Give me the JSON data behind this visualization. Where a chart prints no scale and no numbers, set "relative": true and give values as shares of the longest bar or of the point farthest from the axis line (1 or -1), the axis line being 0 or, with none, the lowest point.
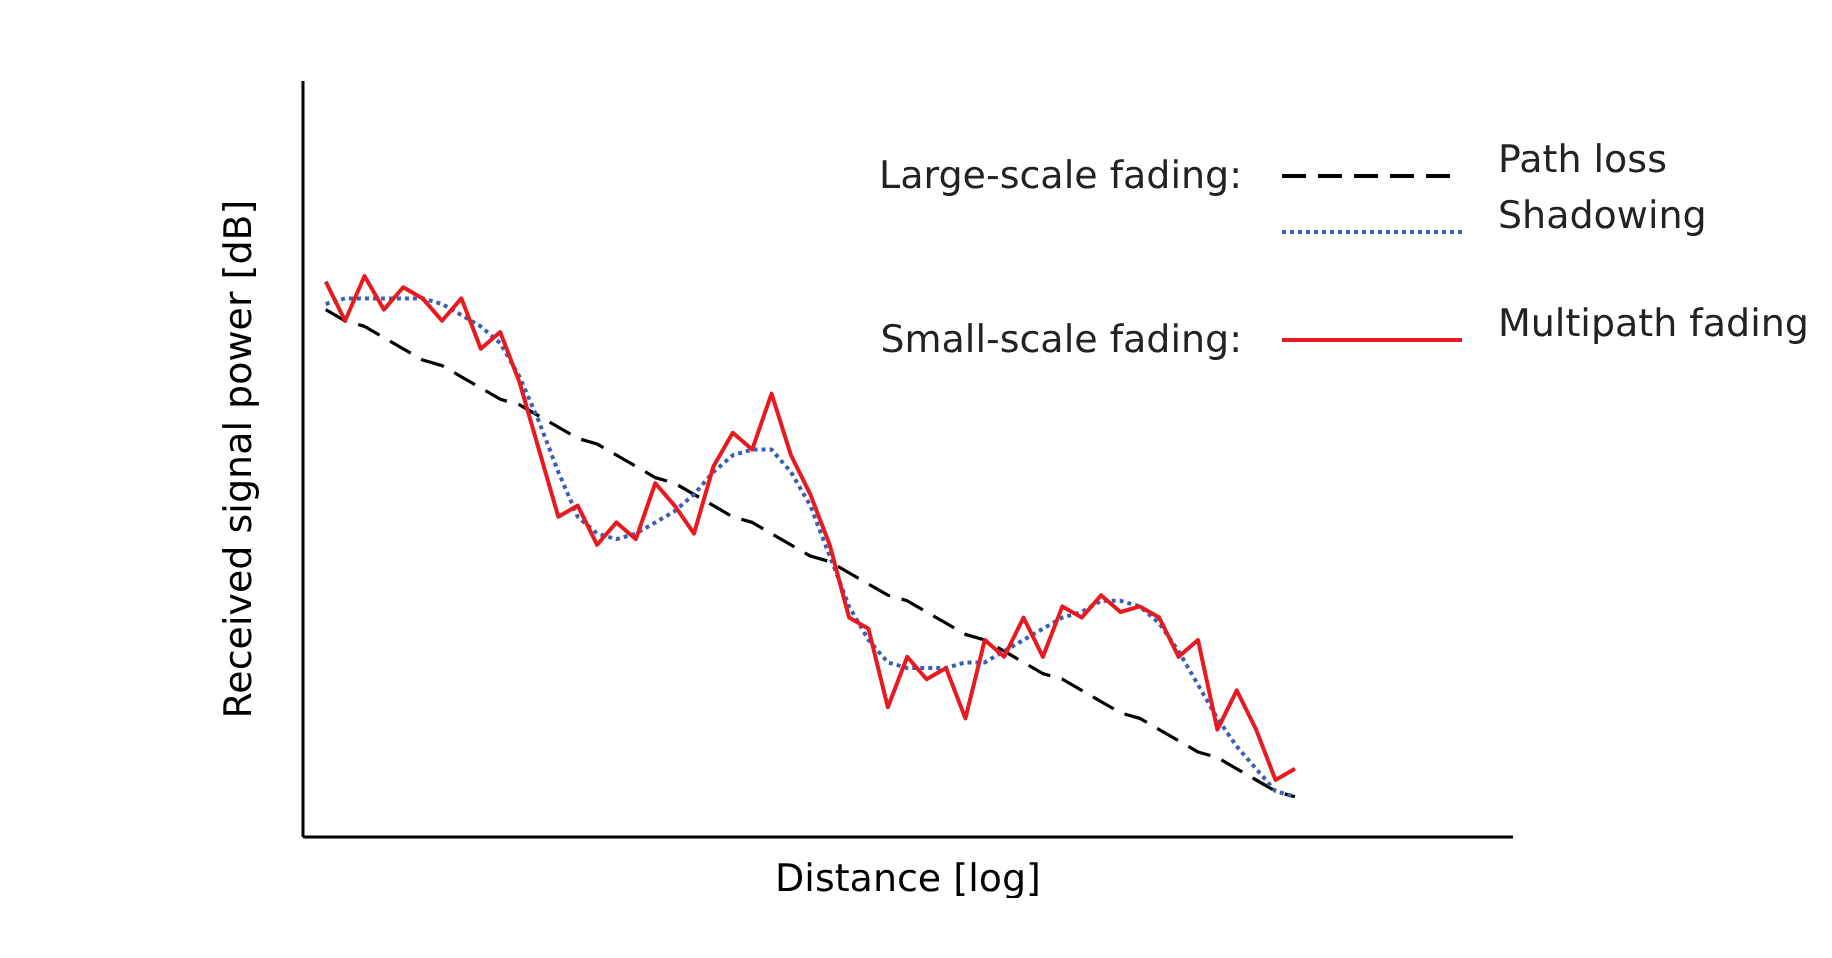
{
  "chart_data": {
    "type": "line",
    "relative": true,
    "xlabel": "Distance [log]",
    "ylabel": "Received signal power [dB]",
    "legend": "top right",
    "grid": false,
    "marker": "none",
    "annotations": [
      "Large-scale fading:",
      "Small-scale fading:"
    ],
    "categories": [
      null,
      null,
      null,
      null,
      null,
      null,
      null,
      null,
      null,
      null,
      null,
      null,
      null,
      null,
      null,
      null,
      null,
      null,
      null,
      null,
      null,
      null,
      null,
      null,
      null,
      null,
      null,
      null,
      null,
      null,
      null,
      null,
      null,
      null,
      null,
      null,
      null,
      null,
      null,
      null,
      null,
      null,
      null,
      null,
      null,
      null,
      null,
      null,
      null,
      null,
      null
    ],
    "series": [
      {
        "name": "Path loss",
        "color": "#000000",
        "line_style": "dashed",
        "values": [
          0.94,
          0.92,
          0.91,
          0.89,
          0.87,
          0.85,
          0.84,
          0.82,
          0.8,
          0.78,
          0.77,
          0.75,
          0.73,
          0.71,
          0.7,
          0.68,
          0.66,
          0.64,
          0.63,
          0.61,
          0.59,
          0.57,
          0.56,
          0.54,
          0.52,
          0.5,
          0.49,
          0.47,
          0.45,
          0.43,
          0.42,
          0.4,
          0.38,
          0.36,
          0.35,
          0.33,
          0.31,
          0.29,
          0.28,
          0.26,
          0.24,
          0.22,
          0.21,
          0.19,
          0.17,
          0.15,
          0.14,
          0.12,
          0.1,
          0.08,
          0.07
        ]
      },
      {
        "name": "Shadowing",
        "color": "#3a5fb8",
        "line_style": "dotted",
        "values": [
          0.95,
          0.96,
          0.96,
          0.96,
          0.96,
          0.96,
          0.95,
          0.93,
          0.91,
          0.88,
          0.82,
          0.74,
          0.65,
          0.57,
          0.54,
          0.53,
          0.54,
          0.56,
          0.58,
          0.61,
          0.65,
          0.68,
          0.69,
          0.69,
          0.65,
          0.59,
          0.5,
          0.41,
          0.35,
          0.31,
          0.3,
          0.3,
          0.3,
          0.31,
          0.31,
          0.33,
          0.35,
          0.37,
          0.39,
          0.4,
          0.42,
          0.42,
          0.41,
          0.38,
          0.33,
          0.27,
          0.21,
          0.16,
          0.12,
          0.08,
          0.07
        ]
      },
      {
        "name": "Multipath fading",
        "color": "#e8191f",
        "line_style": "solid",
        "values": [
          0.99,
          0.92,
          1.0,
          0.94,
          0.98,
          0.96,
          0.92,
          0.96,
          0.87,
          0.9,
          0.81,
          0.69,
          0.57,
          0.59,
          0.52,
          0.56,
          0.53,
          0.63,
          0.59,
          0.54,
          0.66,
          0.72,
          0.69,
          0.79,
          0.68,
          0.61,
          0.52,
          0.39,
          0.37,
          0.23,
          0.32,
          0.28,
          0.3,
          0.21,
          0.35,
          0.32,
          0.39,
          0.32,
          0.41,
          0.39,
          0.43,
          0.4,
          0.41,
          0.39,
          0.32,
          0.35,
          0.19,
          0.26,
          0.19,
          0.1,
          0.12
        ]
      }
    ]
  }
}
